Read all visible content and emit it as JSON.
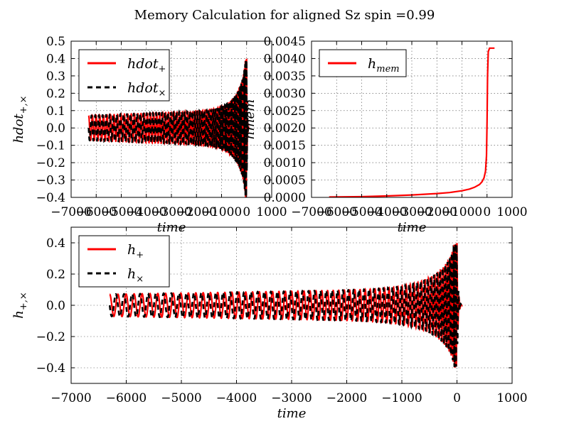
{
  "figure_title": "Memory Calculation for aligned Sz spin =0.99",
  "chart_data": [
    {
      "id": "p1",
      "type": "line",
      "title": "",
      "xlabel": "time",
      "ylabel": "hdot+,×",
      "xlim": [
        -7000,
        1000
      ],
      "ylim": [
        -0.4,
        0.5
      ],
      "xticks": [
        -7000,
        -6000,
        -5000,
        -4000,
        -3000,
        -2000,
        -1000,
        0,
        1000
      ],
      "xtick_labels": [
        "−7000",
        "−6000",
        "−5000",
        "−4000",
        "−3000",
        "−2000",
        "−1000",
        "0",
        "1000"
      ],
      "yticks": [
        -0.4,
        -0.3,
        -0.2,
        -0.1,
        0.0,
        0.1,
        0.2,
        0.3,
        0.4,
        0.5
      ],
      "ytick_labels": [
        "−0.4",
        "−0.3",
        "−0.2",
        "−0.1",
        "0.0",
        "0.1",
        "0.2",
        "0.3",
        "0.4",
        "0.5"
      ],
      "grid": true,
      "legend_position": "upper-left",
      "series": [
        {
          "name": "hdot+",
          "legend_main": "hdot",
          "legend_sub": "+",
          "color": "#ff0000",
          "dash": "solid",
          "waveform": {
            "start": -6300,
            "merger": 0,
            "end": 100,
            "amp_start": 0.07,
            "amp_peak": 0.4,
            "phase": 0
          }
        },
        {
          "name": "hdot×",
          "legend_main": "hdot",
          "legend_sub": "×",
          "color": "#000000",
          "dash": "dashed",
          "waveform": {
            "start": -6300,
            "merger": 0,
            "end": 100,
            "amp_start": 0.07,
            "amp_peak": 0.4,
            "phase": 1.5708
          }
        }
      ]
    },
    {
      "id": "p2",
      "type": "line",
      "title": "",
      "xlabel": "time",
      "ylabel": "hmem",
      "xlim": [
        -7000,
        1000
      ],
      "ylim": [
        0,
        0.0045
      ],
      "xticks": [
        -7000,
        -6000,
        -5000,
        -4000,
        -3000,
        -2000,
        -1000,
        0,
        1000
      ],
      "xtick_labels": [
        "−7000",
        "−6000",
        "−5000",
        "−4000",
        "−3000",
        "−2000",
        "−1000",
        "0",
        "1000"
      ],
      "yticks": [
        0,
        0.0005,
        0.001,
        0.0015,
        0.002,
        0.0025,
        0.003,
        0.0035,
        0.004,
        0.0045
      ],
      "ytick_labels": [
        "0.0000",
        "0.0005",
        "0.0010",
        "0.0015",
        "0.0020",
        "0.0025",
        "0.0030",
        "0.0035",
        "0.0040",
        "0.0045"
      ],
      "grid": true,
      "legend_position": "upper-left",
      "series": [
        {
          "name": "hmem",
          "legend_main": "h",
          "legend_sub": "mem",
          "color": "#ff0000",
          "dash": "solid",
          "x": [
            -6300,
            -5000,
            -4000,
            -3000,
            -2000,
            -1500,
            -1000,
            -700,
            -500,
            -300,
            -200,
            -120,
            -60,
            -20,
            0,
            20,
            50,
            100,
            200,
            300
          ],
          "y": [
            1e-05,
            2e-05,
            4e-05,
            7e-05,
            0.00011,
            0.00014,
            0.00019,
            0.00024,
            0.00029,
            0.00037,
            0.00045,
            0.00056,
            0.00075,
            0.0012,
            0.0022,
            0.0035,
            0.0042,
            0.0043,
            0.0043,
            0.0043
          ]
        }
      ]
    },
    {
      "id": "p3",
      "type": "line",
      "title": "",
      "xlabel": "time",
      "ylabel": "h+,×",
      "xlim": [
        -7000,
        1000
      ],
      "ylim": [
        -0.5,
        0.5
      ],
      "xticks": [
        -7000,
        -6000,
        -5000,
        -4000,
        -3000,
        -2000,
        -1000,
        0,
        1000
      ],
      "xtick_labels": [
        "−7000",
        "−6000",
        "−5000",
        "−4000",
        "−3000",
        "−2000",
        "−1000",
        "0",
        "1000"
      ],
      "yticks": [
        -0.4,
        -0.2,
        0.0,
        0.2,
        0.4
      ],
      "ytick_labels": [
        "−0.4",
        "−0.2",
        "0.0",
        "0.2",
        "0.4"
      ],
      "grid": true,
      "legend_position": "upper-left",
      "series": [
        {
          "name": "h+",
          "legend_main": "h",
          "legend_sub": "+",
          "color": "#ff0000",
          "dash": "solid",
          "waveform": {
            "start": -6300,
            "merger": 0,
            "end": 100,
            "amp_start": 0.07,
            "amp_peak": 0.4,
            "phase": 0
          }
        },
        {
          "name": "h×",
          "legend_main": "h",
          "legend_sub": "×",
          "color": "#000000",
          "dash": "dashed",
          "waveform": {
            "start": -6300,
            "merger": 0,
            "end": 100,
            "amp_start": 0.07,
            "amp_peak": 0.4,
            "phase": 1.5708
          }
        }
      ]
    }
  ]
}
